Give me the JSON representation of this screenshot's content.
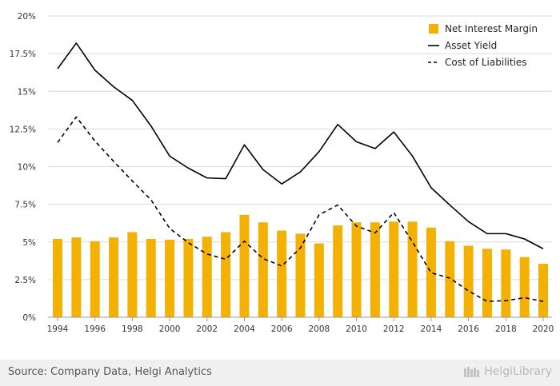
{
  "chart_data": {
    "type": "bar",
    "categories": [
      "1994",
      "1995",
      "1996",
      "1997",
      "1998",
      "1999",
      "2000",
      "2001",
      "2002",
      "2003",
      "2004",
      "2005",
      "2006",
      "2007",
      "2008",
      "2009",
      "2010",
      "2011",
      "2012",
      "2013",
      "2014",
      "2015",
      "2016",
      "2017",
      "2018",
      "2019",
      "2020"
    ],
    "x_tick_labels": [
      "1994",
      "1996",
      "1998",
      "2000",
      "2002",
      "2004",
      "2006",
      "2008",
      "2010",
      "2012",
      "2014",
      "2016",
      "2018",
      "2020"
    ],
    "y_tick_labels": [
      "0%",
      "2.5%",
      "5%",
      "7.5%",
      "10%",
      "12.5%",
      "15%",
      "17.5%",
      "20%"
    ],
    "ylim": [
      0,
      20
    ],
    "y_unit": "%",
    "grid": "horizontal",
    "legend_position": "top-right",
    "series": [
      {
        "name": "Net Interest Margin",
        "type": "bar",
        "color": "#f5b103",
        "values": [
          5.2,
          5.3,
          5.05,
          5.3,
          5.65,
          5.2,
          5.15,
          5.2,
          5.35,
          5.65,
          6.8,
          6.3,
          5.75,
          5.55,
          4.9,
          6.1,
          6.3,
          6.3,
          6.35,
          6.35,
          5.95,
          5.05,
          4.75,
          4.55,
          4.5,
          4.0,
          3.55
        ]
      },
      {
        "name": "Asset Yield",
        "type": "line",
        "style": "solid",
        "color": "#000000",
        "values": [
          16.5,
          18.2,
          16.4,
          15.3,
          14.4,
          12.7,
          10.7,
          9.9,
          9.25,
          9.2,
          11.45,
          9.8,
          8.85,
          9.65,
          11.0,
          12.8,
          11.65,
          11.2,
          12.3,
          10.7,
          8.6,
          7.45,
          6.35,
          5.55,
          5.55,
          5.2,
          4.55
        ]
      },
      {
        "name": "Cost of Liabilities",
        "type": "line",
        "style": "dashed",
        "color": "#000000",
        "values": [
          11.6,
          13.3,
          11.7,
          10.35,
          9.05,
          7.8,
          5.9,
          4.95,
          4.2,
          3.85,
          5.05,
          3.9,
          3.4,
          4.6,
          6.8,
          7.45,
          6.05,
          5.6,
          6.95,
          5.0,
          2.95,
          2.6,
          1.75,
          1.05,
          1.1,
          1.3,
          1.05
        ]
      }
    ]
  },
  "footer": {
    "source": "Source: Company Data, Helgi Analytics",
    "brand": "HelgiLibrary"
  }
}
